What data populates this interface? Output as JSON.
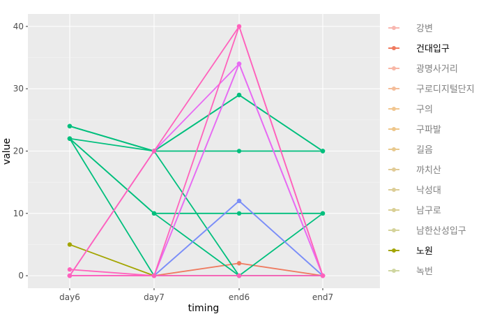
{
  "chart_data": {
    "type": "line",
    "categories": [
      "day6",
      "day7",
      "end6",
      "end7"
    ],
    "xlabel": "timing",
    "ylabel": "value",
    "ylim": [
      -2,
      42
    ],
    "yticks": [
      0,
      10,
      20,
      30,
      40
    ],
    "grid": true,
    "background": "#ebebeb",
    "legend_position": "right",
    "legend": [
      {
        "label": "강변",
        "color": "#f8b7b0",
        "emphasized": false
      },
      {
        "label": "건대입구",
        "color": "#ef7a5f",
        "emphasized": true
      },
      {
        "label": "광명사거리",
        "color": "#f8b7a6",
        "emphasized": false
      },
      {
        "label": "구로디지털단지",
        "color": "#f4bd9a",
        "emphasized": false
      },
      {
        "label": "구의",
        "color": "#f1c690",
        "emphasized": false
      },
      {
        "label": "구파발",
        "color": "#eec68a",
        "emphasized": false
      },
      {
        "label": "길음",
        "color": "#e8c98e",
        "emphasized": false
      },
      {
        "label": "까치산",
        "color": "#e1cb97",
        "emphasized": false
      },
      {
        "label": "낙성대",
        "color": "#dccd97",
        "emphasized": false
      },
      {
        "label": "남구로",
        "color": "#d9cf95",
        "emphasized": false
      },
      {
        "label": "남한산성입구",
        "color": "#d5d39c",
        "emphasized": false
      },
      {
        "label": "노원",
        "color": "#a3a500",
        "emphasized": true
      },
      {
        "label": "녹번",
        "color": "#cfd6a1",
        "emphasized": false
      }
    ],
    "series": [
      {
        "name": "건대입구",
        "color": "#ef7a5f",
        "values": [
          0,
          0,
          2,
          0
        ]
      },
      {
        "name": "노원",
        "color": "#a3a500",
        "values": [
          5,
          0,
          0,
          0
        ]
      },
      {
        "color": "#00bf7d",
        "values": [
          24,
          20,
          29,
          20
        ]
      },
      {
        "color": "#00bf7d",
        "values": [
          24,
          20,
          20,
          20
        ]
      },
      {
        "color": "#00bf7d",
        "values": [
          22,
          10,
          10,
          10
        ]
      },
      {
        "color": "#00bf7d",
        "values": [
          22,
          10,
          0,
          10
        ]
      },
      {
        "color": "#00bf7d",
        "values": [
          22,
          20,
          29,
          20
        ]
      },
      {
        "color": "#00bf7d",
        "values": [
          22,
          0,
          0,
          0
        ]
      },
      {
        "color": "#00bf7d",
        "values": [
          24,
          20,
          0,
          0
        ]
      },
      {
        "color": "#7b8ef8",
        "values": [
          0,
          0,
          12,
          0
        ]
      },
      {
        "color": "#7b8ef8",
        "values": [
          0,
          0,
          12,
          0
        ]
      },
      {
        "color": "#e76bf3",
        "values": [
          0,
          0,
          34,
          0
        ]
      },
      {
        "color": "#e76bf3",
        "values": [
          0,
          0,
          34,
          0
        ]
      },
      {
        "color": "#e76bf3",
        "values": [
          0,
          20,
          34,
          0
        ]
      },
      {
        "color": "#ff62bc",
        "values": [
          0,
          20,
          40,
          0
        ]
      },
      {
        "color": "#ff62bc",
        "values": [
          0,
          0,
          40,
          0
        ]
      },
      {
        "color": "#ff62bc",
        "values": [
          1,
          0,
          0,
          0
        ]
      },
      {
        "color": "#ff62bc",
        "values": [
          0,
          0,
          0,
          0
        ]
      }
    ]
  }
}
